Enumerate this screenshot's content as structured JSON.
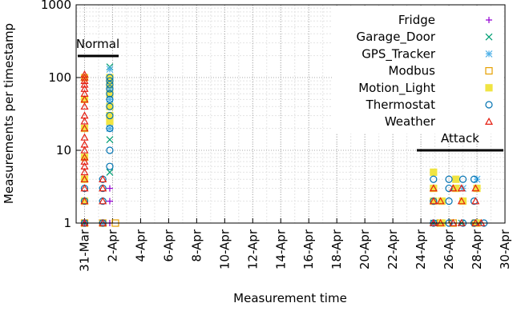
{
  "chart_data": {
    "type": "scatter",
    "xlabel": "Measurement time",
    "ylabel": "Measurements per timestamp",
    "ylog": true,
    "grid": true,
    "legend": "upper right",
    "annotations": [
      "Normal",
      "Attack"
    ],
    "xlim": [
      -0.6,
      30
    ],
    "xticks": [
      {
        "value": 0,
        "label": "31-Mar"
      },
      {
        "value": 2,
        "label": "2-Apr"
      },
      {
        "value": 4,
        "label": "4-Apr"
      },
      {
        "value": 6,
        "label": "6-Apr"
      },
      {
        "value": 8,
        "label": "8-Apr"
      },
      {
        "value": 10,
        "label": "10-Apr"
      },
      {
        "value": 12,
        "label": "12-Apr"
      },
      {
        "value": 14,
        "label": "14-Apr"
      },
      {
        "value": 16,
        "label": "16-Apr"
      },
      {
        "value": 18,
        "label": "18-Apr"
      },
      {
        "value": 20,
        "label": "20-Apr"
      },
      {
        "value": 22,
        "label": "22-Apr"
      },
      {
        "value": 24,
        "label": "24-Apr"
      },
      {
        "value": 26,
        "label": "26-Apr"
      },
      {
        "value": 28,
        "label": "28-Apr"
      },
      {
        "value": 30,
        "label": "30-Apr"
      }
    ],
    "ylim": [
      1,
      1000
    ],
    "yticks": [
      1,
      10,
      100,
      1000
    ],
    "series": [
      {
        "name": "Fridge",
        "color": "#9400d3",
        "marker": "plus",
        "x": [
          0,
          1.8,
          1.8,
          1.8,
          1.8,
          24.9,
          27.9
        ],
        "values": [
          1,
          1,
          2,
          3,
          100,
          1,
          1
        ]
      },
      {
        "name": "Garage_Door",
        "color": "#009e73",
        "marker": "cross",
        "x": [
          1.8,
          1.8,
          1.8,
          1.8,
          0,
          26.9,
          28.0,
          24.9
        ],
        "values": [
          14,
          140,
          100,
          5,
          1,
          1,
          1,
          1
        ]
      },
      {
        "name": "GPS_Tracker",
        "color": "#56b4e9",
        "marker": "star",
        "x": [
          1.8,
          1.8,
          1.8,
          1.8,
          1.8,
          1.8,
          1.8,
          1.8,
          1.8,
          1.8,
          1.3,
          28.0,
          27.0
        ],
        "values": [
          20,
          25,
          30,
          40,
          50,
          60,
          70,
          80,
          100,
          130,
          1,
          4,
          3
        ]
      },
      {
        "name": "Modbus",
        "color": "#e69f00",
        "marker": "square",
        "x": [
          2.2,
          0,
          1.3,
          25.4,
          26.3,
          27.9
        ],
        "values": [
          1,
          1,
          1,
          1,
          1,
          1
        ]
      },
      {
        "name": "Motion_Light",
        "color": "#f0e442",
        "marker": "filled-square",
        "x": [
          0,
          0,
          0,
          0,
          0,
          0,
          1.8,
          1.8,
          1.8,
          1.8,
          1.8,
          1.8,
          24.9,
          24.9,
          24.9,
          25.5,
          25.5,
          26.5,
          26.5,
          27.0,
          28.0,
          28.0
        ],
        "values": [
          2,
          4,
          8,
          20,
          50,
          100,
          25,
          30,
          40,
          60,
          80,
          100,
          5,
          3,
          2,
          1,
          2,
          4,
          3,
          2,
          3,
          1
        ]
      },
      {
        "name": "Thermostat",
        "color": "#0072b2",
        "marker": "circle",
        "x": [
          0,
          0,
          0,
          1.3,
          1.3,
          1.3,
          1.3,
          1.8,
          1.8,
          1.8,
          1.8,
          1.8,
          1.8,
          1.8,
          1.8,
          1.8,
          1.8,
          1.8,
          24.9,
          24.9,
          24.9,
          26.0,
          26.0,
          26.0,
          26.0,
          27.0,
          27.0,
          27.8,
          27.8,
          27.8,
          28.5
        ],
        "values": [
          1,
          2,
          3,
          1,
          2,
          3,
          4,
          6,
          10,
          20,
          30,
          40,
          50,
          60,
          70,
          80,
          90,
          100,
          1,
          2,
          4,
          1,
          2,
          3,
          4,
          1,
          4,
          1,
          2,
          4,
          1
        ]
      },
      {
        "name": "Weather",
        "color": "#e51e10",
        "marker": "triangle",
        "x": [
          0,
          0,
          0,
          0,
          0,
          0,
          0,
          0,
          0,
          0,
          0,
          0,
          0,
          0,
          0,
          0,
          0,
          0,
          0,
          0,
          0,
          0,
          1.3,
          1.3,
          1.3,
          1.3,
          24.9,
          24.9,
          24.9,
          25.4,
          25.4,
          26.3,
          26.3,
          26.9,
          26.9,
          26.9,
          27.9,
          27.9,
          27.9,
          28.3
        ],
        "values": [
          1,
          2,
          3,
          4,
          5,
          6,
          7,
          8,
          10,
          12,
          15,
          20,
          25,
          30,
          40,
          50,
          60,
          70,
          80,
          90,
          100,
          110,
          1,
          2,
          3,
          4,
          1,
          2,
          3,
          1,
          2,
          1,
          3,
          1,
          2,
          3,
          1,
          2,
          3,
          1
        ]
      }
    ]
  }
}
